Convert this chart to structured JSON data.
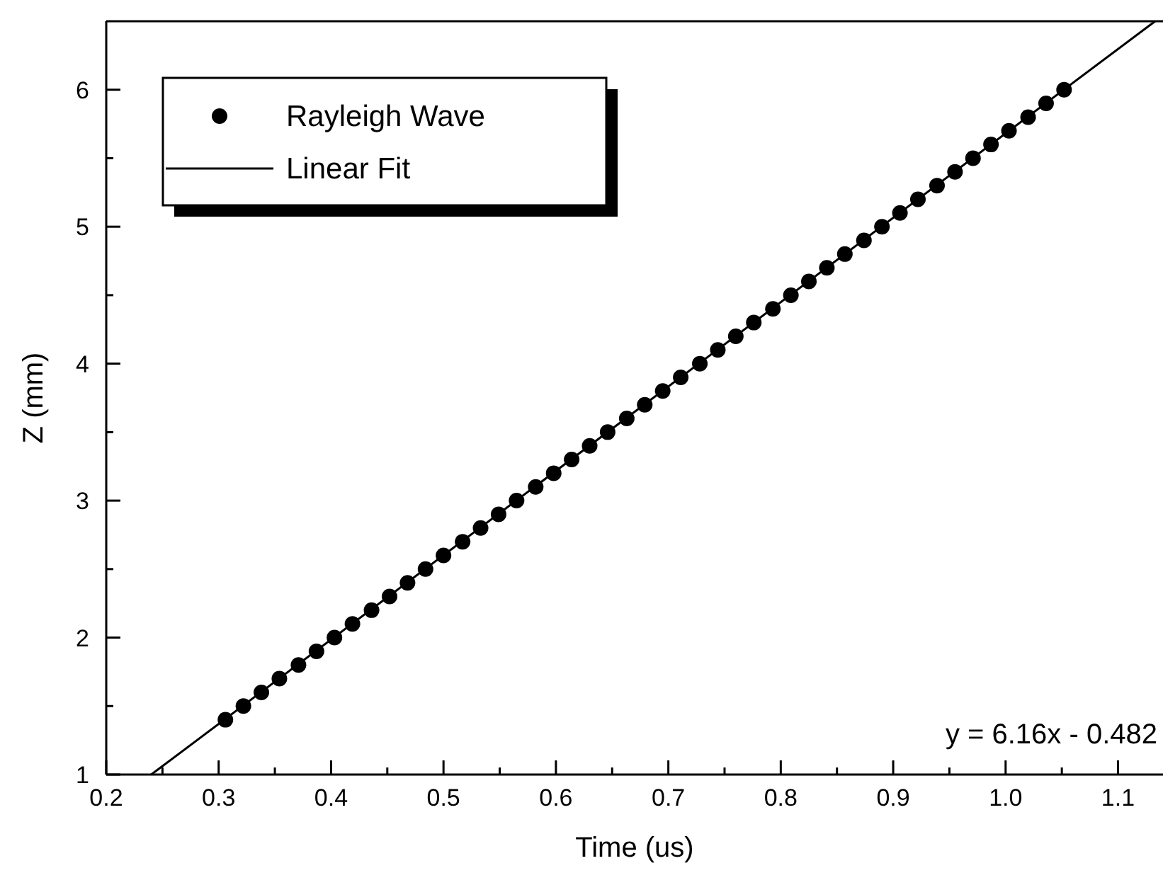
{
  "chart_data": {
    "type": "scatter",
    "xlabel": "Time (us)",
    "ylabel": "Z (mm)",
    "xlim": [
      0.2,
      1.14
    ],
    "ylim": [
      1,
      6.5
    ],
    "xticks": [
      0.2,
      {
        "value": 0.25,
        "label": null
      },
      0.3,
      {
        "value": 0.35,
        "label": null
      },
      0.4,
      {
        "value": 0.45,
        "label": null
      },
      0.5,
      {
        "value": 0.55,
        "label": null
      },
      0.6,
      {
        "value": 0.65,
        "label": null
      },
      0.7,
      {
        "value": 0.75,
        "label": null
      },
      0.8,
      {
        "value": 0.85,
        "label": null
      },
      0.9,
      {
        "value": 0.95,
        "label": null
      },
      {
        "value": 1,
        "label": "1.0"
      },
      {
        "value": 1.05,
        "label": null
      },
      1.1
    ],
    "yticks": [
      1,
      {
        "value": 1.5,
        "label": null
      },
      2,
      {
        "value": 2.5,
        "label": null
      },
      3,
      {
        "value": 3.5,
        "label": null
      },
      4,
      {
        "value": 4.5,
        "label": null
      },
      5,
      {
        "value": 5.5,
        "label": null
      },
      6
    ],
    "grid": false,
    "legend": "top left",
    "annotations": [
      "y = 6.16x - 0.482"
    ],
    "series": [
      {
        "name": "Rayleigh Wave",
        "color": "#000000",
        "marker": "circle",
        "x": [
          0.306,
          0.322,
          0.338,
          0.354,
          0.371,
          0.387,
          0.403,
          0.419,
          0.436,
          0.452,
          0.468,
          0.484,
          0.5,
          0.517,
          0.533,
          0.549,
          0.565,
          0.582,
          0.598,
          0.614,
          0.63,
          0.646,
          0.663,
          0.679,
          0.695,
          0.711,
          0.728,
          0.744,
          0.76,
          0.776,
          0.793,
          0.809,
          0.825,
          0.841,
          0.857,
          0.874,
          0.89,
          0.906,
          0.922,
          0.939,
          0.955,
          0.971,
          0.987,
          1.003,
          1.02,
          1.036,
          1.052
        ],
        "values": [
          1.4,
          1.5,
          1.6,
          1.7,
          1.8,
          1.9,
          2.0,
          2.1,
          2.2,
          2.3,
          2.4,
          2.5,
          2.6,
          2.7,
          2.8,
          2.9,
          3.0,
          3.1,
          3.2,
          3.3,
          3.4,
          3.5,
          3.6,
          3.7,
          3.8,
          3.9,
          4.0,
          4.1,
          4.2,
          4.3,
          4.4,
          4.5,
          4.6,
          4.7,
          4.8,
          4.9,
          5.0,
          5.1,
          5.2,
          5.3,
          5.4,
          5.5,
          5.6,
          5.7,
          5.8,
          5.9,
          6.0
        ]
      },
      {
        "name": "Linear Fit",
        "type": "line",
        "color": "#000000",
        "marker": "none",
        "line_style": "solid",
        "x": [
          0.24,
          1.133
        ],
        "values": [
          1.0,
          6.5
        ]
      }
    ]
  }
}
